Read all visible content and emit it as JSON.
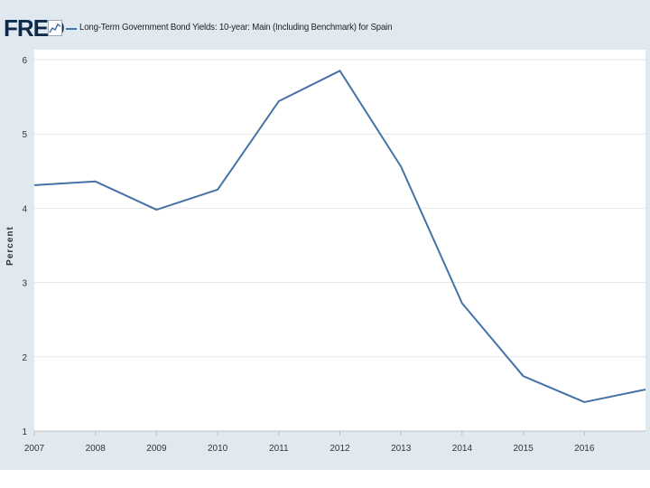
{
  "header": {
    "logo": "FRED",
    "series_title": "Long-Term Government Bond Yields: 10-year: Main (Including Benchmark) for Spain"
  },
  "colors": {
    "background": "#e1e9f0",
    "plot_background": "#ffffff",
    "series_line": "#4572a7",
    "grid": "#e6e6e6"
  },
  "icons": [
    "graph-icon"
  ],
  "chart_data": {
    "type": "line",
    "title": "Long-Term Government Bond Yields: 10-year: Main (Including Benchmark) for Spain",
    "xlabel": "",
    "ylabel": "Percent",
    "x": [
      2007,
      2008,
      2009,
      2010,
      2011,
      2012,
      2013,
      2014,
      2015,
      2016,
      2017
    ],
    "series": [
      {
        "name": "Long-Term Government Bond Yields: 10-year: Main (Including Benchmark) for Spain",
        "values": [
          4.31,
          4.36,
          3.98,
          4.25,
          5.44,
          5.85,
          4.56,
          2.72,
          1.74,
          1.39,
          1.56
        ]
      }
    ],
    "xticks": [
      "2007",
      "2008",
      "2009",
      "2010",
      "2011",
      "2012",
      "2013",
      "2014",
      "2015",
      "2016"
    ],
    "yticks": [
      "1",
      "2",
      "3",
      "4",
      "5",
      "6"
    ],
    "xlim": [
      2007,
      2017
    ],
    "ylim": [
      1,
      6
    ],
    "grid": true
  }
}
